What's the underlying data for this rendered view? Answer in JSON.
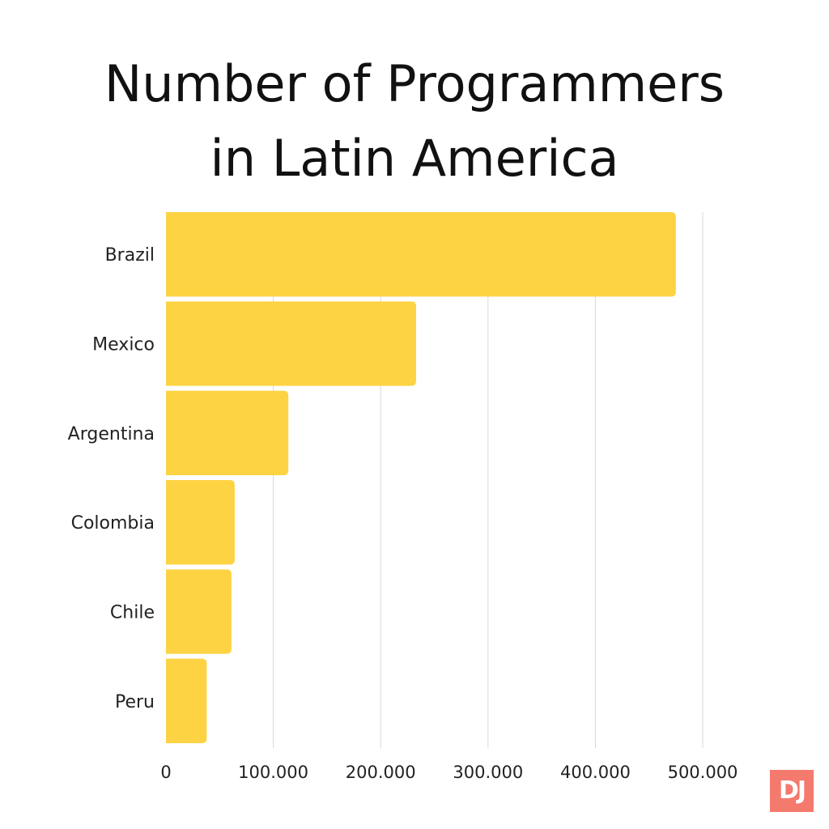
{
  "chart_data": {
    "type": "bar",
    "orientation": "horizontal",
    "title": "Number of Programmers in Latin America",
    "title_lines": [
      "Number of Programmers",
      "in Latin America"
    ],
    "categories": [
      "Brazil",
      "Mexico",
      "Argentina",
      "Colombia",
      "Chile",
      "Peru"
    ],
    "values": [
      475000,
      233000,
      114000,
      64000,
      61000,
      38000
    ],
    "xlim": [
      0,
      500000
    ],
    "xticks": [
      {
        "value": 0,
        "label": "0"
      },
      {
        "value": 100000,
        "label": "100.000"
      },
      {
        "value": 200000,
        "label": "200.000"
      },
      {
        "value": 300000,
        "label": "300.000"
      },
      {
        "value": 400000,
        "label": "400.000"
      },
      {
        "value": 500000,
        "label": "500.000"
      }
    ],
    "xlabel": "",
    "ylabel": "",
    "grid": true,
    "legend": "none",
    "bar_color": "#fdd343",
    "grid_color": "#d9d9d9"
  },
  "logo": {
    "text": "DJ",
    "color": "#f47a6e"
  }
}
